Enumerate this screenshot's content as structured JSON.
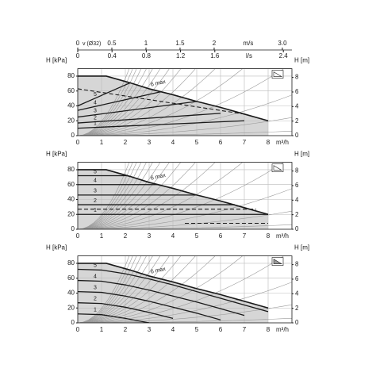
{
  "chart_data": [
    {
      "type": "line",
      "line_color": "#1a1a1a",
      "fill_color": "#d6d6d6",
      "top_axes": [
        {
          "label": "v (Ø32)",
          "unit": "m/s",
          "lim": [
            0,
            3.14
          ],
          "ticks": [
            0,
            0.5,
            1,
            1.5,
            2,
            {
              "value": 3,
              "label": "3.0"
            }
          ]
        },
        {
          "unit": "l/s",
          "lim": [
            0,
            2.5
          ],
          "ticks": [
            0,
            0.4,
            0.8,
            1.2,
            1.6,
            2.4
          ]
        }
      ],
      "ylabel": "H [kPa]",
      "y2label": "H [m]",
      "xlabel": "m³/h",
      "xlim": [
        0,
        9
      ],
      "xticks": [
        0,
        1,
        2,
        3,
        4,
        5,
        6,
        7,
        8
      ],
      "ylim": [
        0,
        90
      ],
      "yticks": [
        0,
        20,
        40,
        60,
        80
      ],
      "y2lim": [
        0,
        9.2
      ],
      "y2ticks": [
        0,
        2,
        4,
        6,
        8
      ],
      "grid": true,
      "series": [
        {
          "name": "6 max",
          "style": "max",
          "x": [
            0,
            1.2,
            2.2,
            3,
            4,
            5,
            6,
            7,
            8
          ],
          "values": [
            80,
            80,
            71,
            63,
            55,
            46,
            38,
            29,
            20
          ]
        },
        {
          "name": "5",
          "style": "solid",
          "x": [
            0,
            2.2
          ],
          "values": [
            40,
            71
          ]
        },
        {
          "name": "4",
          "style": "solid",
          "x": [
            0,
            3.5
          ],
          "values": [
            34,
            59
          ]
        },
        {
          "name": "3",
          "style": "solid",
          "x": [
            0,
            5
          ],
          "values": [
            25,
            46
          ]
        },
        {
          "name": "2",
          "style": "solid",
          "x": [
            0,
            6
          ],
          "values": [
            17,
            30
          ]
        },
        {
          "name": "1",
          "style": "solid",
          "x": [
            0,
            7
          ],
          "values": [
            10,
            20
          ]
        },
        {
          "style": "dashed",
          "x": [
            0,
            7
          ],
          "values": [
            63,
            29
          ]
        }
      ]
    },
    {
      "type": "line",
      "line_color": "#1a1a1a",
      "fill_color": "#d6d6d6",
      "ylabel": "H [kPa]",
      "y2label": "H [m]",
      "xlabel": "m³/h",
      "xlim": [
        0,
        9
      ],
      "xticks": [
        0,
        1,
        2,
        3,
        4,
        5,
        6,
        7,
        8
      ],
      "ylim": [
        0,
        90
      ],
      "yticks": [
        0,
        20,
        40,
        60,
        80
      ],
      "y2lim": [
        0,
        9.2
      ],
      "y2ticks": [
        0,
        2,
        4,
        6,
        8
      ],
      "grid": true,
      "series": [
        {
          "name": "6 max",
          "style": "max",
          "x": [
            0,
            1.2,
            2.2,
            3,
            4,
            5,
            6,
            7,
            8
          ],
          "values": [
            80,
            80,
            71,
            63,
            55,
            46,
            38,
            29,
            20
          ]
        },
        {
          "name": "5",
          "style": "solid",
          "x": [
            0,
            2.1
          ],
          "values": [
            72,
            72
          ]
        },
        {
          "name": "4",
          "style": "solid",
          "x": [
            0,
            3.4
          ],
          "values": [
            60,
            60
          ]
        },
        {
          "name": "3",
          "style": "solid",
          "x": [
            0,
            5
          ],
          "values": [
            46,
            46
          ]
        },
        {
          "name": "2",
          "style": "solid",
          "x": [
            0,
            6.6
          ],
          "values": [
            33,
            33
          ]
        },
        {
          "name": "1",
          "style": "solid",
          "x": [
            0,
            8
          ],
          "values": [
            20,
            20
          ]
        },
        {
          "style": "dashed",
          "x": [
            0,
            7.5
          ],
          "values": [
            27,
            27
          ]
        },
        {
          "style": "dashed",
          "x": [
            4.5,
            8
          ],
          "values": [
            8,
            8
          ]
        }
      ]
    },
    {
      "type": "line",
      "line_color": "#1a1a1a",
      "fill_color": "#d6d6d6",
      "ylabel": "H [kPa]",
      "y2label": "H [m]",
      "xlabel": "m³/h",
      "xlim": [
        0,
        9
      ],
      "xticks": [
        0,
        1,
        2,
        3,
        4,
        5,
        6,
        7,
        8
      ],
      "ylim": [
        0,
        90
      ],
      "yticks": [
        0,
        20,
        40,
        60,
        80
      ],
      "y2lim": [
        0,
        9.2
      ],
      "y2ticks": [
        0,
        2,
        4,
        6,
        8
      ],
      "grid": true,
      "series": [
        {
          "name": "6 max",
          "style": "max",
          "x": [
            0,
            1.2,
            2.2,
            3,
            4,
            5,
            6,
            7,
            8
          ],
          "values": [
            80,
            80,
            71,
            63,
            55,
            46,
            38,
            29,
            20
          ]
        },
        {
          "name": "5",
          "style": "solid",
          "x": [
            0,
            1,
            2,
            3,
            4,
            5,
            6,
            7,
            8
          ],
          "values": [
            72,
            71,
            66,
            59,
            51,
            42,
            33,
            24,
            15
          ]
        },
        {
          "name": "4",
          "style": "solid",
          "x": [
            0,
            1,
            2,
            3,
            4,
            5,
            6,
            7
          ],
          "values": [
            57,
            56,
            51,
            44,
            36,
            28,
            19,
            10
          ]
        },
        {
          "name": "3",
          "style": "solid",
          "x": [
            0,
            1,
            2,
            3,
            4,
            5,
            6
          ],
          "values": [
            42,
            41,
            36,
            29,
            21,
            13,
            4
          ]
        },
        {
          "name": "2",
          "style": "solid",
          "x": [
            0,
            1,
            2,
            3,
            4
          ],
          "values": [
            27,
            26,
            21,
            14,
            6
          ]
        },
        {
          "name": "1",
          "style": "solid",
          "x": [
            0,
            1,
            2,
            3
          ],
          "values": [
            12,
            11,
            6,
            0
          ]
        }
      ]
    }
  ]
}
